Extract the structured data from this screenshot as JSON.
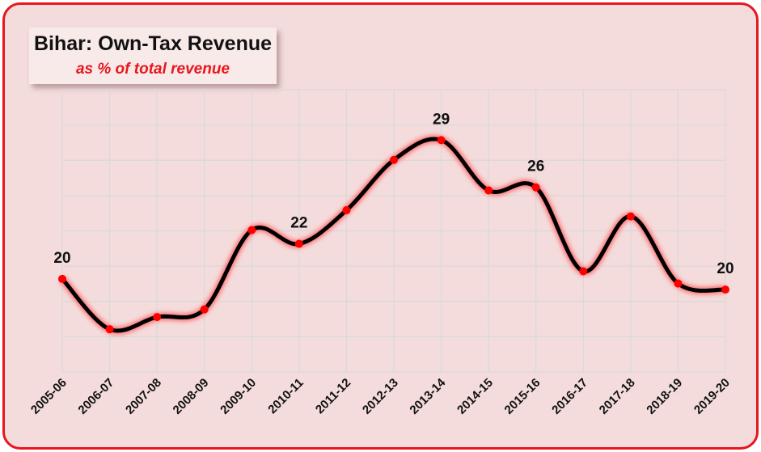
{
  "chart_data": {
    "type": "line",
    "title": "Bihar: Own-Tax Revenue",
    "subtitle": "as % of total revenue",
    "categories": [
      "2005-06",
      "2006-07",
      "2007-08",
      "2008-09",
      "2009-10",
      "2010-11",
      "2011-12",
      "2012-13",
      "2013-14",
      "2014-15",
      "2015-16",
      "2016-17",
      "2017-18",
      "2018-19",
      "2019-20"
    ],
    "series": [
      {
        "values": [
          20.2,
          16.9,
          17.7,
          18.2,
          23.4,
          22.5,
          24.7,
          28.0,
          29.3,
          26.0,
          26.2,
          20.7,
          24.3,
          19.9,
          19.5
        ]
      }
    ],
    "data_labels": [
      {
        "index": 0,
        "text": "20"
      },
      {
        "index": 5,
        "text": "22"
      },
      {
        "index": 8,
        "text": "29"
      },
      {
        "index": 10,
        "text": "26"
      },
      {
        "index": 14,
        "text": "20"
      }
    ],
    "ylim": [
      14.1,
      32.6
    ],
    "grid": true,
    "legend": "none",
    "colors": {
      "line": "#000000",
      "marker": "#ff0000",
      "glow": "#ff6b6b",
      "grid": "#d9d9d9",
      "border": "#e8161c",
      "background": "#f4dcdc"
    }
  }
}
